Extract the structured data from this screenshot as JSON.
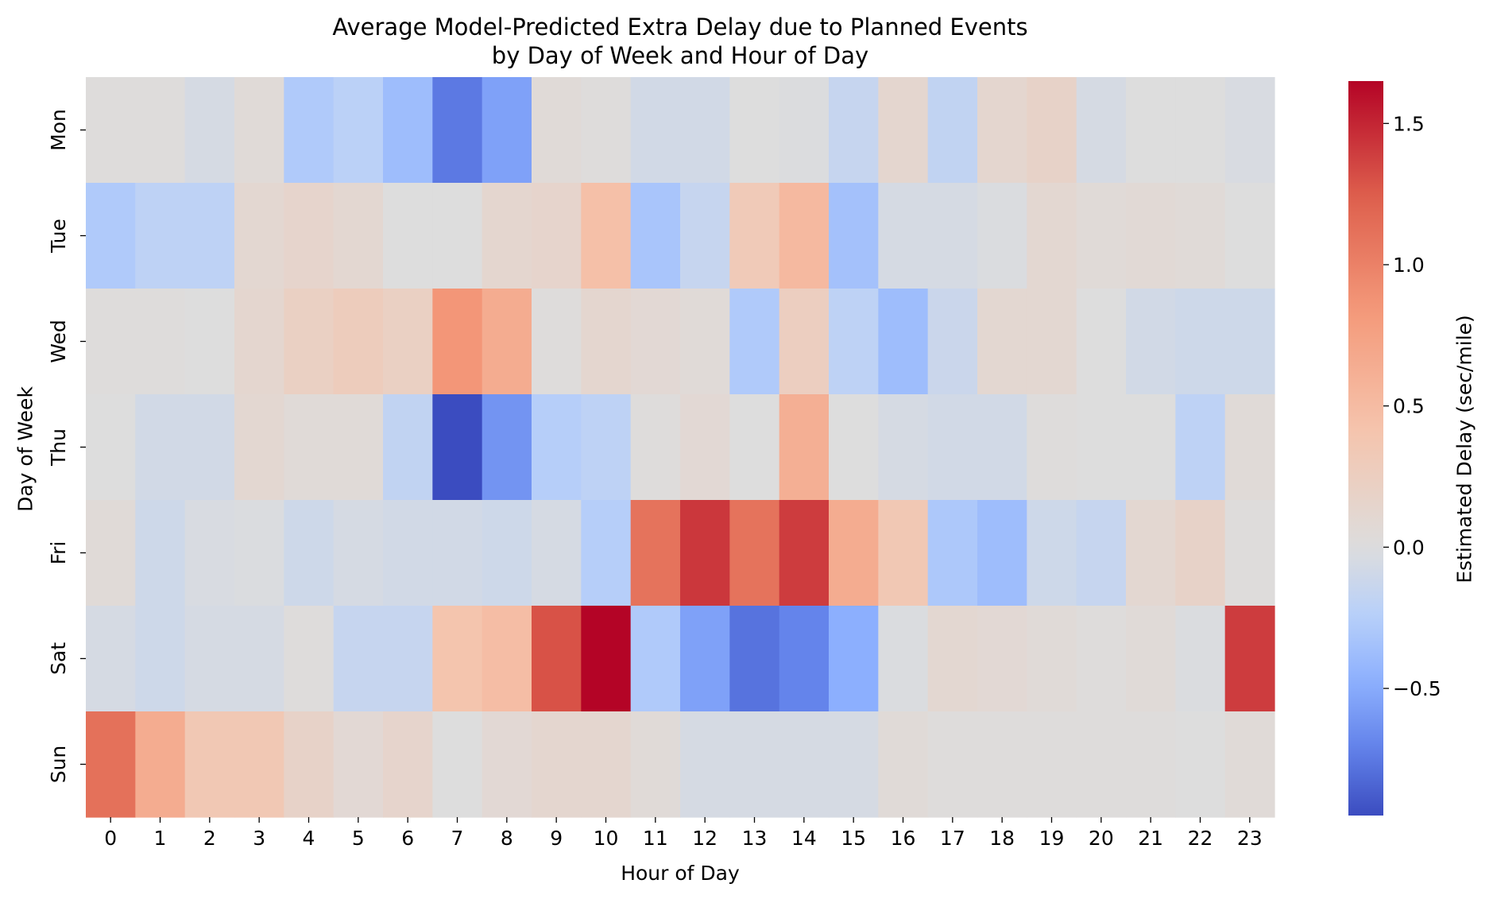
{
  "chart_data": {
    "type": "heatmap",
    "title": "Average Model-Predicted Extra Delay due to Planned Events",
    "subtitle": "by Day of Week and Hour of Day",
    "xlabel": "Hour of Day",
    "ylabel": "Day of Week",
    "colorbar_label": "Estimated Delay (sec/mile)",
    "colormap": "coolwarm",
    "center": 0.0,
    "vmin": -0.95,
    "vmax": 1.65,
    "colorbar_ticks": [
      {
        "value": 1.5,
        "label": "1.5"
      },
      {
        "value": 1.0,
        "label": "1.0"
      },
      {
        "value": 0.5,
        "label": "0.5"
      },
      {
        "value": 0.0,
        "label": "0.0"
      },
      {
        "value": -0.5,
        "label": "−0.5"
      }
    ],
    "x_categories": [
      "0",
      "1",
      "2",
      "3",
      "4",
      "5",
      "6",
      "7",
      "8",
      "9",
      "10",
      "11",
      "12",
      "13",
      "14",
      "15",
      "16",
      "17",
      "18",
      "19",
      "20",
      "21",
      "22",
      "23"
    ],
    "y_categories": [
      "Mon",
      "Tue",
      "Wed",
      "Thu",
      "Fri",
      "Sat",
      "Sun"
    ],
    "values": [
      [
        0.02,
        0.02,
        -0.05,
        0.05,
        -0.28,
        -0.22,
        -0.38,
        -0.75,
        -0.55,
        0.05,
        0.02,
        -0.08,
        -0.08,
        0.0,
        -0.01,
        -0.15,
        0.12,
        -0.18,
        0.12,
        0.18,
        -0.05,
        0.0,
        0.0,
        -0.03
      ],
      [
        -0.28,
        -0.2,
        -0.2,
        0.1,
        0.15,
        0.1,
        0.0,
        0.0,
        0.12,
        0.15,
        0.45,
        -0.32,
        -0.15,
        0.32,
        0.52,
        -0.35,
        -0.05,
        -0.05,
        -0.02,
        0.1,
        0.05,
        0.07,
        0.05,
        0.0
      ],
      [
        0.02,
        0.02,
        0.0,
        0.12,
        0.22,
        0.28,
        0.22,
        0.85,
        0.65,
        0.02,
        0.12,
        0.08,
        0.05,
        -0.28,
        0.25,
        -0.2,
        -0.38,
        -0.12,
        0.1,
        0.1,
        0.0,
        -0.08,
        -0.1,
        -0.1
      ],
      [
        0.0,
        -0.08,
        -0.08,
        0.1,
        0.05,
        0.05,
        -0.18,
        -0.95,
        -0.62,
        -0.25,
        -0.2,
        0.02,
        0.08,
        0.0,
        0.62,
        0.0,
        -0.05,
        -0.08,
        -0.08,
        0.02,
        0.0,
        0.0,
        -0.2,
        0.05
      ],
      [
        0.05,
        -0.1,
        -0.03,
        -0.02,
        -0.1,
        -0.05,
        -0.08,
        -0.08,
        -0.1,
        -0.05,
        -0.25,
        1.1,
        1.42,
        1.1,
        1.4,
        0.65,
        0.35,
        -0.3,
        -0.38,
        -0.1,
        -0.15,
        0.1,
        0.18,
        0.02
      ],
      [
        -0.05,
        -0.1,
        -0.05,
        -0.05,
        0.02,
        -0.15,
        -0.15,
        0.4,
        0.48,
        1.3,
        1.65,
        -0.28,
        -0.55,
        -0.78,
        -0.7,
        -0.48,
        -0.02,
        0.1,
        0.08,
        0.05,
        0.02,
        0.05,
        -0.02,
        1.4
      ],
      [
        1.12,
        0.65,
        0.35,
        0.35,
        0.18,
        0.08,
        0.15,
        0.0,
        0.08,
        0.12,
        0.12,
        0.05,
        -0.05,
        -0.05,
        -0.05,
        -0.05,
        0.05,
        0.02,
        0.02,
        0.02,
        0.02,
        0.02,
        0.0,
        0.05
      ]
    ]
  }
}
